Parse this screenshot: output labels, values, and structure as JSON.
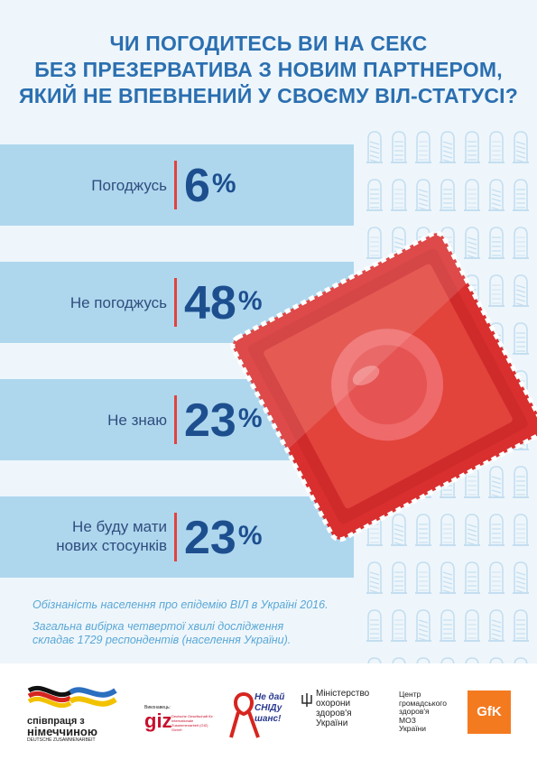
{
  "title": {
    "line1": "ЧИ ПОГОДИТЕСЬ ВИ НА СЕКС",
    "line2": "БЕЗ ПРЕЗЕРВАТИВА З НОВИМ ПАРТНЕРОМ,",
    "line3": "ЯКИЙ НЕ ВПЕВНЕНИЙ У СВОЄМУ ВІЛ-СТАТУСІ?"
  },
  "answers": [
    {
      "label": "Погоджусь",
      "value": 6
    },
    {
      "label": "Не погоджусь",
      "value": 48
    },
    {
      "label": "Не знаю",
      "value": 23
    },
    {
      "label_line1": "Не буду мати",
      "label_line2": "нових стосунків",
      "value": 23
    }
  ],
  "percent_sign": "%",
  "notes": {
    "line1": "Обізнаність населення про епідемію ВІЛ в Україні 2016.",
    "line2": "Загальна вибірка четвертої хвилі дослідження",
    "line3": "складає 1729 респондентів (населення України)."
  },
  "footer": {
    "germany": {
      "line1": "співпраця з",
      "line2": "німеччиною",
      "line3": "DEUTSCHE ZUSAMMENARBEIT"
    },
    "giz": {
      "caption": "Виконавець:",
      "name": "giz",
      "desc": "Deutsche Gesellschaft für Internationale Zusammenarbeit (GIZ) GmbH"
    },
    "campaign": {
      "text": "Не дай СНІДу шанс!"
    },
    "ministry": {
      "line1": "Міністерство",
      "line2": "охорони",
      "line3": "здоров'я",
      "line4": "України"
    },
    "center": {
      "line1": "Центр",
      "line2": "громадського",
      "line3": "здоров'я",
      "line4": "МОЗ",
      "line5": "України"
    },
    "gfk": {
      "name": "GfK"
    }
  },
  "colors": {
    "title": "#2b6fb0",
    "band": "#aed7ee",
    "background": "#eef6fb",
    "value": "#1d4f8f",
    "accent_bar": "#e2433b",
    "wrapper_red": "#d92f2f",
    "notes": "#5aa7d6"
  }
}
